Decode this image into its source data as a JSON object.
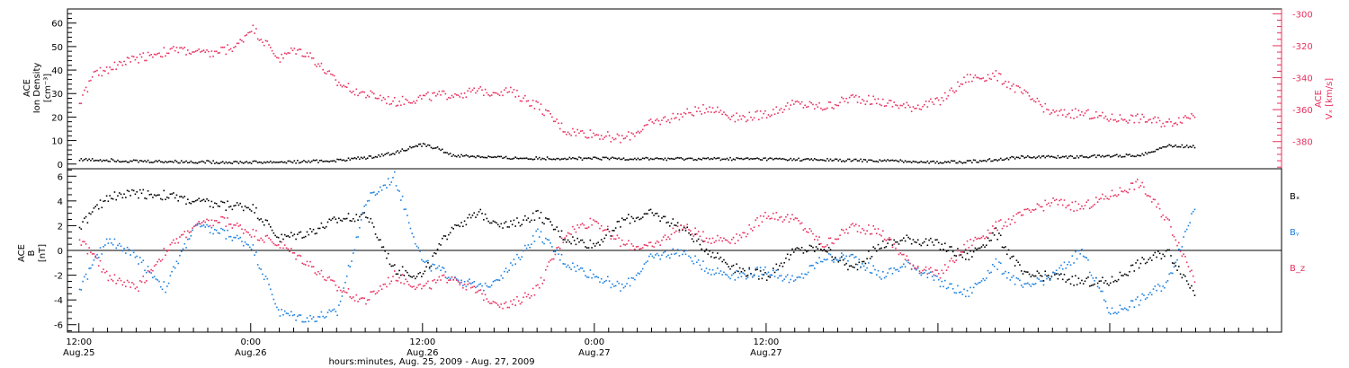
{
  "colors": {
    "ion_density": "#000000",
    "vx": "#e8305f",
    "bx": "#000000",
    "by": "#1a7fe0",
    "bz": "#e8305f",
    "axes": "#000000",
    "background": "#ffffff"
  },
  "chart_data": [
    {
      "type": "scatter",
      "panel": "top",
      "ylabel_left": [
        "ACE",
        "Ion Density",
        "[cm⁻³]"
      ],
      "ylabel_right": [
        "ACE",
        "Vₓ [km/s]"
      ],
      "ylim_left": [
        -2,
        66
      ],
      "yticks_left": [
        0,
        10,
        20,
        30,
        40,
        50,
        60
      ],
      "ylim_right": [
        -397,
        -297
      ],
      "yticks_right": [
        -300,
        -320,
        -340,
        -360,
        -380
      ],
      "series": [
        {
          "key": "ion_density",
          "color": "#000000",
          "axis": "left",
          "x": [
            0,
            2,
            4,
            8,
            12,
            16,
            18,
            20,
            22,
            23.5,
            24,
            25,
            26,
            30,
            36,
            42,
            48,
            52,
            58,
            60,
            62,
            64,
            66,
            67,
            68,
            70,
            72,
            74,
            76,
            78
          ],
          "y": [
            2.2,
            2.0,
            1.5,
            1.2,
            1.0,
            1.3,
            1.8,
            3.0,
            5.0,
            8.0,
            8.5,
            7.0,
            4.0,
            2.8,
            2.6,
            2.5,
            2.4,
            2.0,
            1.5,
            1.0,
            1.3,
            2.2,
            3.5,
            3.2,
            3.3,
            3.4,
            3.7,
            4.0,
            8.0,
            7.8
          ]
        },
        {
          "key": "vx",
          "color": "#e8305f",
          "axis": "right",
          "x": [
            0,
            1,
            3,
            5,
            7,
            9,
            11,
            12,
            13,
            14,
            15,
            16,
            18,
            20,
            21,
            22,
            24,
            26,
            28,
            30,
            32,
            34,
            36,
            38,
            40,
            42,
            44,
            46,
            48,
            50,
            52,
            54,
            56,
            58,
            60,
            62,
            64,
            66,
            68,
            70,
            72,
            74,
            76,
            78
          ],
          "y": [
            -355,
            -338,
            -330,
            -325,
            -322,
            -325,
            -320,
            -308,
            -318,
            -328,
            -322,
            -325,
            -343,
            -350,
            -352,
            -355,
            -352,
            -350,
            -348,
            -348,
            -357,
            -373,
            -375,
            -378,
            -368,
            -363,
            -358,
            -365,
            -362,
            -356,
            -358,
            -352,
            -355,
            -358,
            -355,
            -340,
            -338,
            -350,
            -362,
            -362,
            -365,
            -365,
            -368,
            -362
          ]
        }
      ]
    },
    {
      "type": "scatter",
      "panel": "bottom",
      "ylabel": [
        "ACE",
        "B",
        "[nT]"
      ],
      "ylim": [
        -6.6,
        6.6
      ],
      "yticks": [
        -6,
        -4,
        -2,
        0,
        2,
        4,
        6
      ],
      "zero_line": true,
      "legend": [
        "Bₓ",
        "Bᵧ",
        "B_z"
      ],
      "series": [
        {
          "key": "bx",
          "name": "Bₓ",
          "color": "#000000",
          "x": [
            0,
            2,
            4,
            6,
            8,
            10,
            12,
            14,
            16,
            18,
            20,
            22,
            24,
            26,
            28,
            30,
            32,
            34,
            36,
            38,
            40,
            42,
            44,
            46,
            48,
            50,
            52,
            54,
            56,
            58,
            60,
            62,
            64,
            66,
            68,
            70,
            72,
            74,
            76,
            78
          ],
          "y": [
            2.0,
            4.4,
            4.7,
            4.5,
            4.0,
            3.7,
            3.6,
            1.0,
            1.5,
            2.5,
            3.0,
            -1.5,
            -2.0,
            2.0,
            3.0,
            2.0,
            3.0,
            1.0,
            0.5,
            2.5,
            3.0,
            2.0,
            0.0,
            -1.5,
            -2.0,
            0.0,
            0.3,
            -1.5,
            0.5,
            1.0,
            0.5,
            -0.5,
            1.5,
            -2.0,
            -2.0,
            -2.5,
            -2.5,
            -1.0,
            0.0,
            -3.5
          ]
        },
        {
          "key": "by",
          "name": "Bᵧ",
          "color": "#1a7fe0",
          "x": [
            0,
            2,
            4,
            6,
            8,
            10,
            12,
            14,
            16,
            17,
            18,
            20,
            22,
            24,
            26,
            28,
            30,
            32,
            34,
            36,
            38,
            40,
            42,
            44,
            46,
            48,
            50,
            52,
            54,
            56,
            58,
            60,
            62,
            64,
            66,
            68,
            70,
            72,
            74,
            76,
            78
          ],
          "y": [
            -3.0,
            1.0,
            -0.5,
            -3.0,
            2.0,
            1.5,
            0.5,
            -5.0,
            -5.5,
            -5.2,
            -5.0,
            4.0,
            6.0,
            -1.0,
            -2.0,
            -3.0,
            -1.5,
            1.5,
            -1.0,
            -2.0,
            -3.0,
            -0.5,
            0.0,
            -1.5,
            -2.0,
            -1.5,
            -2.5,
            -0.5,
            -0.5,
            -2.0,
            -1.0,
            -2.5,
            -3.5,
            -1.0,
            -3.0,
            -2.0,
            0.0,
            -5.0,
            -4.0,
            -2.5,
            4.0
          ]
        },
        {
          "key": "bz",
          "name": "B_z",
          "color": "#e8305f",
          "x": [
            0,
            2,
            4,
            6,
            8,
            10,
            12,
            14,
            16,
            18,
            20,
            22,
            24,
            26,
            28,
            30,
            32,
            34,
            36,
            38,
            40,
            42,
            44,
            46,
            48,
            50,
            52,
            54,
            56,
            58,
            60,
            62,
            64,
            66,
            68,
            70,
            72,
            74,
            76,
            78
          ],
          "y": [
            1.0,
            -2.0,
            -3.0,
            0.0,
            2.0,
            2.5,
            1.5,
            0.5,
            -1.0,
            -3.0,
            -4.0,
            -2.0,
            -3.0,
            -2.0,
            -3.5,
            -4.5,
            -3.0,
            1.5,
            2.5,
            0.5,
            0.3,
            2.0,
            1.0,
            1.0,
            3.0,
            2.5,
            0.5,
            2.0,
            1.5,
            -1.0,
            -2.0,
            0.5,
            2.0,
            3.0,
            4.0,
            3.5,
            4.5,
            5.5,
            2.5,
            -2.5
          ]
        }
      ]
    }
  ],
  "x_axis": {
    "xlim": [
      -0.8,
      84
    ],
    "ticks": [
      {
        "x": 0,
        "time": "12:00",
        "date": "Aug.25"
      },
      {
        "x": 12,
        "time": "0:00",
        "date": "Aug.26"
      },
      {
        "x": 24,
        "time": "12:00",
        "date": "Aug.26"
      },
      {
        "x": 36,
        "time": "0:00",
        "date": "Aug.27"
      },
      {
        "x": 48,
        "time": "12:00",
        "date": "Aug.27"
      }
    ],
    "tick_positions": [
      0,
      12,
      24,
      36,
      48
    ],
    "label": "hours:minutes, Aug. 25, 2009 - Aug. 27, 2009"
  }
}
